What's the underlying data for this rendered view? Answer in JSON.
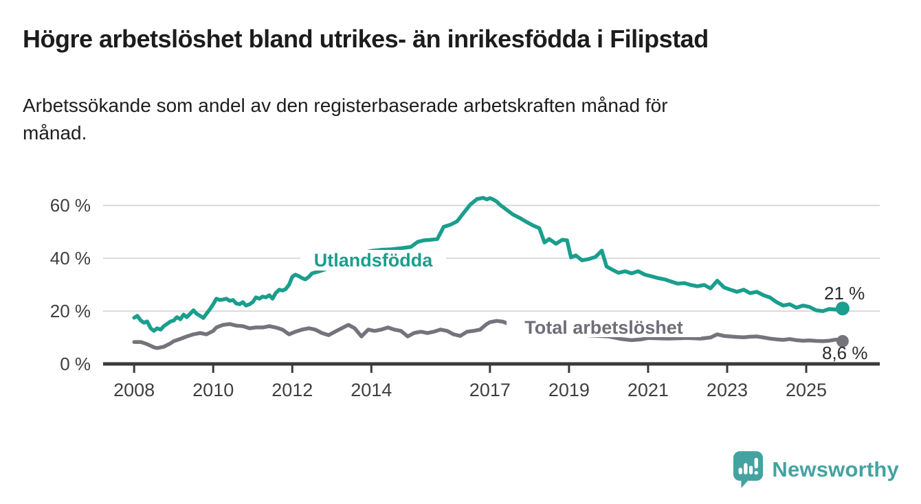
{
  "title": "Högre arbetslöshet bland utrikes- än inrikesfödda i Filipstad",
  "subtitle_lines": [
    "Arbetssökande som andel av den registerbaserade arbetskraften månad för",
    "månad."
  ],
  "branding": {
    "logo_text": "Newsworthy",
    "logo_icon": "speech-bubble-bar-chart-icon",
    "logo_color": "#44a3a1"
  },
  "style": {
    "background": "#ffffff",
    "axis_color": "#3a3a3a",
    "grid_color": "#d9d9d9",
    "tick_label_color": "#3f3f3f",
    "annotation_color": "#2b2b2b"
  },
  "chart_data": {
    "type": "line",
    "title": "Högre arbetslöshet bland utrikes- än inrikesfödda i Filipstad",
    "xlabel": "",
    "ylabel": "",
    "grid": "horizontal",
    "x_axis": {
      "domain": [
        2007.215,
        2026.86
      ],
      "ticks": [
        2008,
        2010,
        2012,
        2014,
        2017,
        2019,
        2021,
        2023,
        2025
      ],
      "tick_labels": [
        "2008",
        "2010",
        "2012",
        "2014",
        "2017",
        "2019",
        "2021",
        "2023",
        "2025"
      ]
    },
    "y_axis": {
      "domain": [
        0,
        65
      ],
      "ticks": [
        0,
        20,
        40,
        60
      ],
      "tick_labels": [
        "0 %",
        "20 %",
        "40 %",
        "60 %"
      ]
    },
    "series": [
      {
        "name": "Utlandsfödda",
        "color": "#1a9e8d",
        "end_label": "21 %",
        "end_value": 21,
        "label_annotation": {
          "text": "Utlandsfödda"
        },
        "points": [
          [
            2008.0,
            17.5
          ],
          [
            2008.08,
            18.2
          ],
          [
            2008.17,
            16.4
          ],
          [
            2008.25,
            15.6
          ],
          [
            2008.33,
            16.1
          ],
          [
            2008.42,
            13.5
          ],
          [
            2008.5,
            12.5
          ],
          [
            2008.58,
            13.5
          ],
          [
            2008.67,
            13.0
          ],
          [
            2008.75,
            14.3
          ],
          [
            2008.83,
            15.1
          ],
          [
            2008.92,
            16.1
          ],
          [
            2009.0,
            16.4
          ],
          [
            2009.08,
            17.7
          ],
          [
            2009.17,
            16.9
          ],
          [
            2009.25,
            18.7
          ],
          [
            2009.33,
            17.7
          ],
          [
            2009.42,
            19.0
          ],
          [
            2009.5,
            20.3
          ],
          [
            2009.58,
            19.0
          ],
          [
            2009.67,
            18.2
          ],
          [
            2009.75,
            17.4
          ],
          [
            2009.83,
            19.0
          ],
          [
            2009.92,
            20.8
          ],
          [
            2010.0,
            22.6
          ],
          [
            2010.08,
            24.7
          ],
          [
            2010.17,
            24.2
          ],
          [
            2010.25,
            24.4
          ],
          [
            2010.33,
            24.7
          ],
          [
            2010.42,
            23.9
          ],
          [
            2010.5,
            24.2
          ],
          [
            2010.58,
            22.9
          ],
          [
            2010.67,
            22.6
          ],
          [
            2010.75,
            23.4
          ],
          [
            2010.83,
            22.1
          ],
          [
            2010.92,
            22.6
          ],
          [
            2011.0,
            23.4
          ],
          [
            2011.08,
            25.2
          ],
          [
            2011.17,
            24.7
          ],
          [
            2011.25,
            25.5
          ],
          [
            2011.33,
            25.2
          ],
          [
            2011.42,
            26.0
          ],
          [
            2011.5,
            24.7
          ],
          [
            2011.58,
            26.8
          ],
          [
            2011.67,
            28.1
          ],
          [
            2011.75,
            27.8
          ],
          [
            2011.83,
            28.3
          ],
          [
            2011.92,
            30.0
          ],
          [
            2012.0,
            33.0
          ],
          [
            2012.08,
            33.8
          ],
          [
            2012.17,
            33.2
          ],
          [
            2012.25,
            32.5
          ],
          [
            2012.33,
            32.0
          ],
          [
            2012.42,
            33.0
          ],
          [
            2012.5,
            34.3
          ],
          [
            2012.67,
            35.0
          ],
          [
            2012.83,
            35.8
          ],
          [
            2013.0,
            37.5
          ],
          [
            2013.25,
            39.0
          ],
          [
            2013.5,
            40.5
          ],
          [
            2013.75,
            42.0
          ],
          [
            2014.0,
            42.8
          ],
          [
            2014.25,
            43.2
          ],
          [
            2014.5,
            43.4
          ],
          [
            2014.75,
            43.8
          ],
          [
            2015.0,
            44.3
          ],
          [
            2015.17,
            46.2
          ],
          [
            2015.33,
            46.8
          ],
          [
            2015.5,
            47.0
          ],
          [
            2015.67,
            47.3
          ],
          [
            2015.83,
            51.9
          ],
          [
            2016.0,
            52.7
          ],
          [
            2016.17,
            54.0
          ],
          [
            2016.33,
            57.1
          ],
          [
            2016.5,
            60.3
          ],
          [
            2016.67,
            62.4
          ],
          [
            2016.83,
            62.9
          ],
          [
            2016.92,
            62.3
          ],
          [
            2017.0,
            62.8
          ],
          [
            2017.08,
            62.3
          ],
          [
            2017.17,
            61.5
          ],
          [
            2017.25,
            60.3
          ],
          [
            2017.42,
            58.4
          ],
          [
            2017.58,
            56.6
          ],
          [
            2017.75,
            55.3
          ],
          [
            2017.92,
            53.8
          ],
          [
            2018.08,
            52.5
          ],
          [
            2018.25,
            51.4
          ],
          [
            2018.38,
            46.0
          ],
          [
            2018.5,
            47.3
          ],
          [
            2018.67,
            45.5
          ],
          [
            2018.83,
            47.0
          ],
          [
            2018.95,
            46.8
          ],
          [
            2019.05,
            40.3
          ],
          [
            2019.17,
            41.1
          ],
          [
            2019.33,
            39.2
          ],
          [
            2019.5,
            39.7
          ],
          [
            2019.67,
            40.5
          ],
          [
            2019.83,
            42.9
          ],
          [
            2019.95,
            36.9
          ],
          [
            2020.08,
            35.8
          ],
          [
            2020.25,
            34.5
          ],
          [
            2020.42,
            35.1
          ],
          [
            2020.58,
            34.3
          ],
          [
            2020.75,
            35.1
          ],
          [
            2020.92,
            33.8
          ],
          [
            2021.08,
            33.2
          ],
          [
            2021.25,
            32.5
          ],
          [
            2021.42,
            32.0
          ],
          [
            2021.58,
            31.2
          ],
          [
            2021.75,
            30.4
          ],
          [
            2021.92,
            30.6
          ],
          [
            2022.08,
            29.9
          ],
          [
            2022.25,
            29.4
          ],
          [
            2022.42,
            29.9
          ],
          [
            2022.58,
            28.6
          ],
          [
            2022.75,
            31.5
          ],
          [
            2022.92,
            29.0
          ],
          [
            2023.08,
            28.1
          ],
          [
            2023.25,
            27.3
          ],
          [
            2023.42,
            28.1
          ],
          [
            2023.58,
            26.8
          ],
          [
            2023.75,
            27.3
          ],
          [
            2023.92,
            26.0
          ],
          [
            2024.08,
            25.2
          ],
          [
            2024.25,
            23.4
          ],
          [
            2024.42,
            22.1
          ],
          [
            2024.58,
            22.6
          ],
          [
            2024.75,
            21.3
          ],
          [
            2024.92,
            22.1
          ],
          [
            2025.08,
            21.6
          ],
          [
            2025.25,
            20.3
          ],
          [
            2025.42,
            20.0
          ],
          [
            2025.58,
            20.8
          ],
          [
            2025.75,
            20.6
          ],
          [
            2025.92,
            21.0
          ]
        ]
      },
      {
        "name": "Total arbetslöshet",
        "color": "#75747d",
        "end_label": "8,6 %",
        "end_value": 8.6,
        "label_annotation": {
          "text": "Total arbetslöshet"
        },
        "points": [
          [
            2008.0,
            8.3
          ],
          [
            2008.17,
            8.3
          ],
          [
            2008.33,
            7.5
          ],
          [
            2008.5,
            6.3
          ],
          [
            2008.58,
            6.0
          ],
          [
            2008.75,
            6.5
          ],
          [
            2008.92,
            7.8
          ],
          [
            2009.0,
            8.6
          ],
          [
            2009.17,
            9.5
          ],
          [
            2009.33,
            10.4
          ],
          [
            2009.5,
            11.2
          ],
          [
            2009.67,
            11.7
          ],
          [
            2009.83,
            11.2
          ],
          [
            2010.0,
            12.5
          ],
          [
            2010.08,
            13.8
          ],
          [
            2010.25,
            14.8
          ],
          [
            2010.42,
            15.1
          ],
          [
            2010.58,
            14.5
          ],
          [
            2010.75,
            14.3
          ],
          [
            2010.92,
            13.5
          ],
          [
            2011.08,
            13.8
          ],
          [
            2011.25,
            13.8
          ],
          [
            2011.42,
            14.3
          ],
          [
            2011.58,
            13.8
          ],
          [
            2011.75,
            13.0
          ],
          [
            2011.92,
            11.2
          ],
          [
            2012.08,
            12.2
          ],
          [
            2012.25,
            13.0
          ],
          [
            2012.42,
            13.5
          ],
          [
            2012.58,
            13.0
          ],
          [
            2012.75,
            11.7
          ],
          [
            2012.92,
            10.9
          ],
          [
            2013.08,
            12.2
          ],
          [
            2013.25,
            13.5
          ],
          [
            2013.42,
            14.8
          ],
          [
            2013.58,
            13.5
          ],
          [
            2013.75,
            10.4
          ],
          [
            2013.92,
            13.0
          ],
          [
            2014.08,
            12.5
          ],
          [
            2014.25,
            13.0
          ],
          [
            2014.42,
            13.8
          ],
          [
            2014.58,
            13.0
          ],
          [
            2014.75,
            12.5
          ],
          [
            2014.92,
            10.4
          ],
          [
            2015.08,
            11.7
          ],
          [
            2015.25,
            12.2
          ],
          [
            2015.42,
            11.7
          ],
          [
            2015.58,
            12.2
          ],
          [
            2015.75,
            13.0
          ],
          [
            2015.92,
            12.5
          ],
          [
            2016.08,
            11.2
          ],
          [
            2016.25,
            10.6
          ],
          [
            2016.42,
            12.2
          ],
          [
            2016.58,
            12.5
          ],
          [
            2016.75,
            13.0
          ],
          [
            2016.92,
            15.1
          ],
          [
            2017.0,
            15.8
          ],
          [
            2017.17,
            16.3
          ],
          [
            2017.33,
            16.0
          ],
          [
            2017.5,
            15.0
          ],
          [
            2017.67,
            14.2
          ],
          [
            2017.83,
            13.6
          ],
          [
            2018.0,
            13.0
          ],
          [
            2018.5,
            12.2
          ],
          [
            2019.0,
            11.4
          ],
          [
            2019.5,
            10.8
          ],
          [
            2020.0,
            10.4
          ],
          [
            2020.33,
            9.4
          ],
          [
            2020.58,
            9.0
          ],
          [
            2020.83,
            9.3
          ],
          [
            2021.0,
            9.8
          ],
          [
            2021.5,
            9.6
          ],
          [
            2022.0,
            9.8
          ],
          [
            2022.33,
            9.6
          ],
          [
            2022.58,
            10.0
          ],
          [
            2022.75,
            11.2
          ],
          [
            2022.92,
            10.6
          ],
          [
            2023.08,
            10.4
          ],
          [
            2023.25,
            10.2
          ],
          [
            2023.42,
            10.1
          ],
          [
            2023.58,
            10.3
          ],
          [
            2023.75,
            10.4
          ],
          [
            2023.92,
            10.0
          ],
          [
            2024.08,
            9.6
          ],
          [
            2024.25,
            9.3
          ],
          [
            2024.42,
            9.1
          ],
          [
            2024.58,
            9.4
          ],
          [
            2024.75,
            9.0
          ],
          [
            2024.92,
            8.8
          ],
          [
            2025.08,
            8.9
          ],
          [
            2025.25,
            8.7
          ],
          [
            2025.42,
            8.6
          ],
          [
            2025.58,
            8.8
          ],
          [
            2025.75,
            9.2
          ],
          [
            2025.92,
            8.6
          ]
        ]
      }
    ]
  }
}
